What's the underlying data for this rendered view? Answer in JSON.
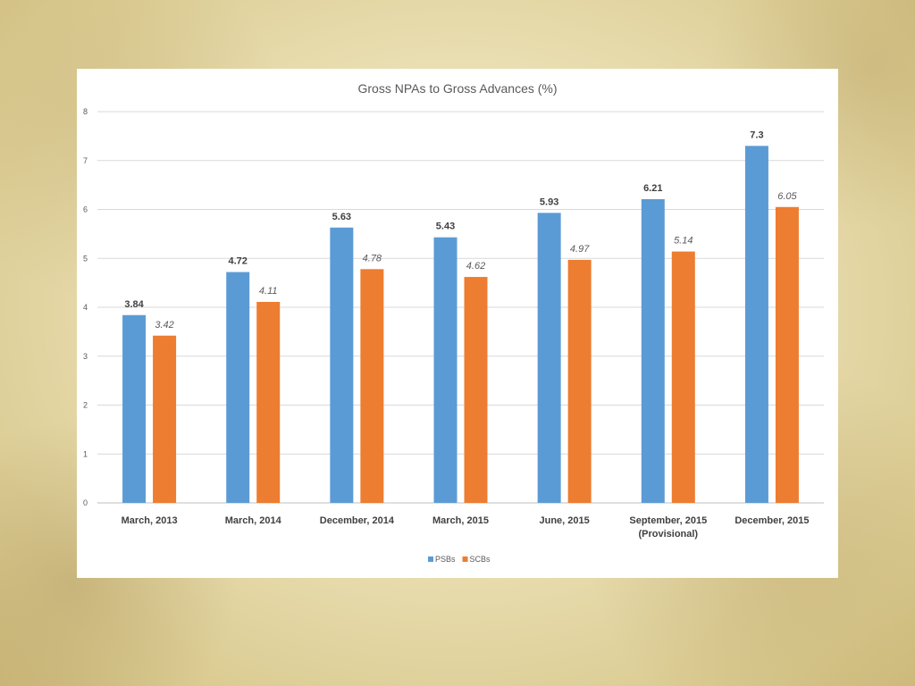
{
  "chart_data": {
    "type": "bar",
    "title": "Gross NPAs to Gross Advances (%)",
    "categories": [
      "March, 2013",
      "March, 2014",
      "December, 2014",
      "March, 2015",
      "June, 2015",
      "September, 2015\n(Provisional)",
      "December, 2015"
    ],
    "series": [
      {
        "name": "PSBs",
        "values": [
          3.84,
          4.72,
          5.63,
          5.43,
          5.93,
          6.21,
          7.3
        ],
        "color": "#5b9bd5",
        "labels": [
          "3.84",
          "4.72",
          "5.63",
          "5.43",
          "5.93",
          "6.21",
          "7.3"
        ]
      },
      {
        "name": "SCBs",
        "values": [
          3.42,
          4.11,
          4.78,
          4.62,
          4.97,
          5.14,
          6.05
        ],
        "color": "#ed7d31",
        "labels": [
          "3.42",
          "4.11",
          "4.78",
          "4.62",
          "4.97",
          "5.14",
          "6.05"
        ]
      }
    ],
    "ylim": [
      0,
      8
    ],
    "yticks": [
      0,
      1,
      2,
      3,
      4,
      5,
      6,
      7,
      8
    ],
    "grid": true,
    "legend_position": "bottom"
  }
}
